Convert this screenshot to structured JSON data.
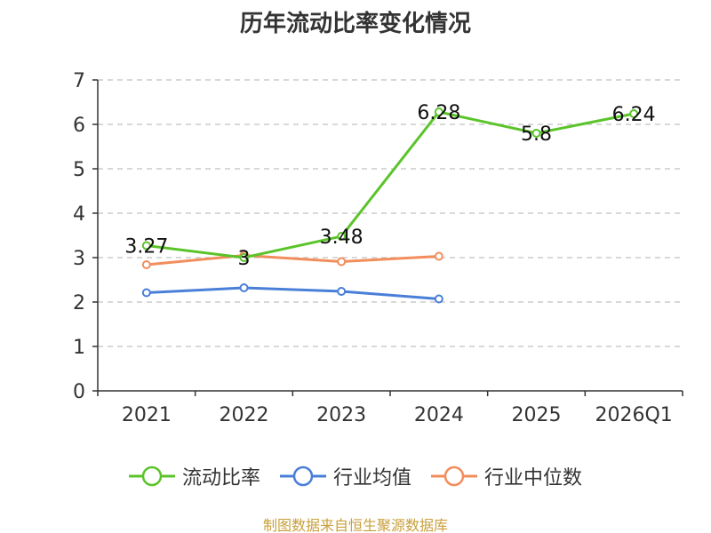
{
  "chart_data": {
    "type": "line",
    "title": "历年流动比率变化情况",
    "categories": [
      "2021",
      "2022",
      "2023",
      "2024",
      "2025",
      "2026Q1"
    ],
    "y_ticks": [
      "0",
      "1",
      "2",
      "3",
      "4",
      "5",
      "6",
      "7"
    ],
    "ylim": [
      0,
      7
    ],
    "grid": true,
    "legend_position": "bottom",
    "series": [
      {
        "name": "流动比率",
        "color": "#5bc42a",
        "values": [
          3.27,
          3.0,
          3.48,
          6.28,
          5.8,
          6.24
        ],
        "labels": [
          "3.27",
          "3",
          "3.48",
          "6.28",
          "5.8",
          "6.24"
        ]
      },
      {
        "name": "行业均值",
        "color": "#4a7fd8",
        "values": [
          2.21,
          2.32,
          2.24,
          2.07,
          null,
          null
        ],
        "labels": []
      },
      {
        "name": "行业中位数",
        "color": "#f28d5c",
        "values": [
          2.84,
          3.05,
          2.91,
          3.03,
          null,
          null
        ],
        "labels": []
      }
    ]
  },
  "footer": {
    "source": "制图数据来自恒生聚源数据库"
  }
}
